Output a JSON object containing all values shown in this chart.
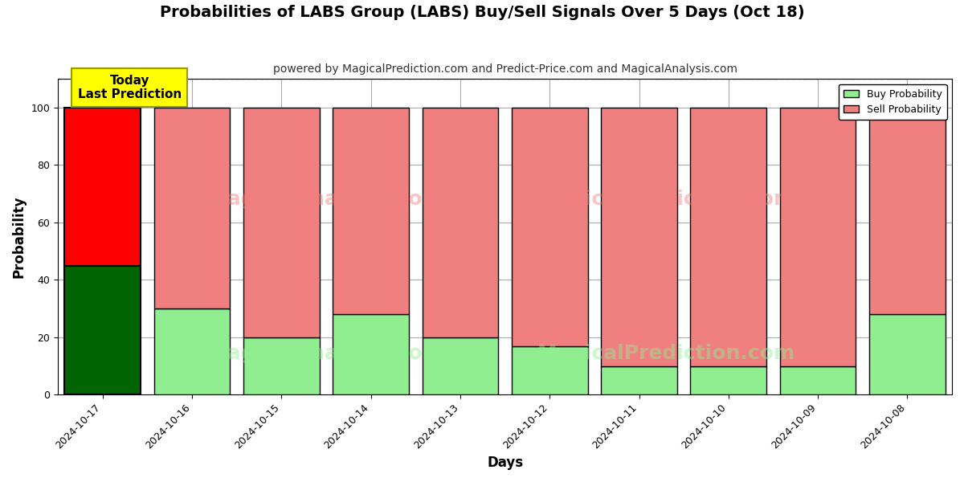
{
  "title": "Probabilities of LABS Group (LABS) Buy/Sell Signals Over 5 Days (Oct 18)",
  "subtitle": "powered by MagicalPrediction.com and Predict-Price.com and MagicalAnalysis.com",
  "xlabel": "Days",
  "ylabel": "Probability",
  "categories": [
    "2024-10-17",
    "2024-10-16",
    "2024-10-15",
    "2024-10-14",
    "2024-10-13",
    "2024-10-12",
    "2024-10-11",
    "2024-10-10",
    "2024-10-09",
    "2024-10-08"
  ],
  "buy_values": [
    45,
    30,
    20,
    28,
    20,
    17,
    10,
    10,
    10,
    28
  ],
  "sell_values": [
    55,
    70,
    80,
    72,
    80,
    83,
    90,
    90,
    90,
    72
  ],
  "today_idx": 0,
  "today_buy_color": "#006400",
  "today_sell_color": "#ff0000",
  "other_buy_color": "#90ee90",
  "other_sell_color": "#f08080",
  "bar_edgecolor": "#000000",
  "today_label_text": "Today\nLast Prediction",
  "today_label_bg": "#ffff00",
  "legend_buy_label": "Buy Probability",
  "legend_sell_label": "Sell Probability",
  "ylim": [
    0,
    110
  ],
  "yticks": [
    0,
    20,
    40,
    60,
    80,
    100
  ],
  "dashed_line_y": 110,
  "grid_color": "#aaaaaa",
  "background_color": "#ffffff",
  "title_fontsize": 14,
  "subtitle_fontsize": 10,
  "label_fontsize": 12,
  "tick_fontsize": 9,
  "bar_width": 0.85,
  "wm_upper_color": "#f08080",
  "wm_lower_color": "#90ee90",
  "wm_alpha": 0.45,
  "wm_fontsize": 18
}
